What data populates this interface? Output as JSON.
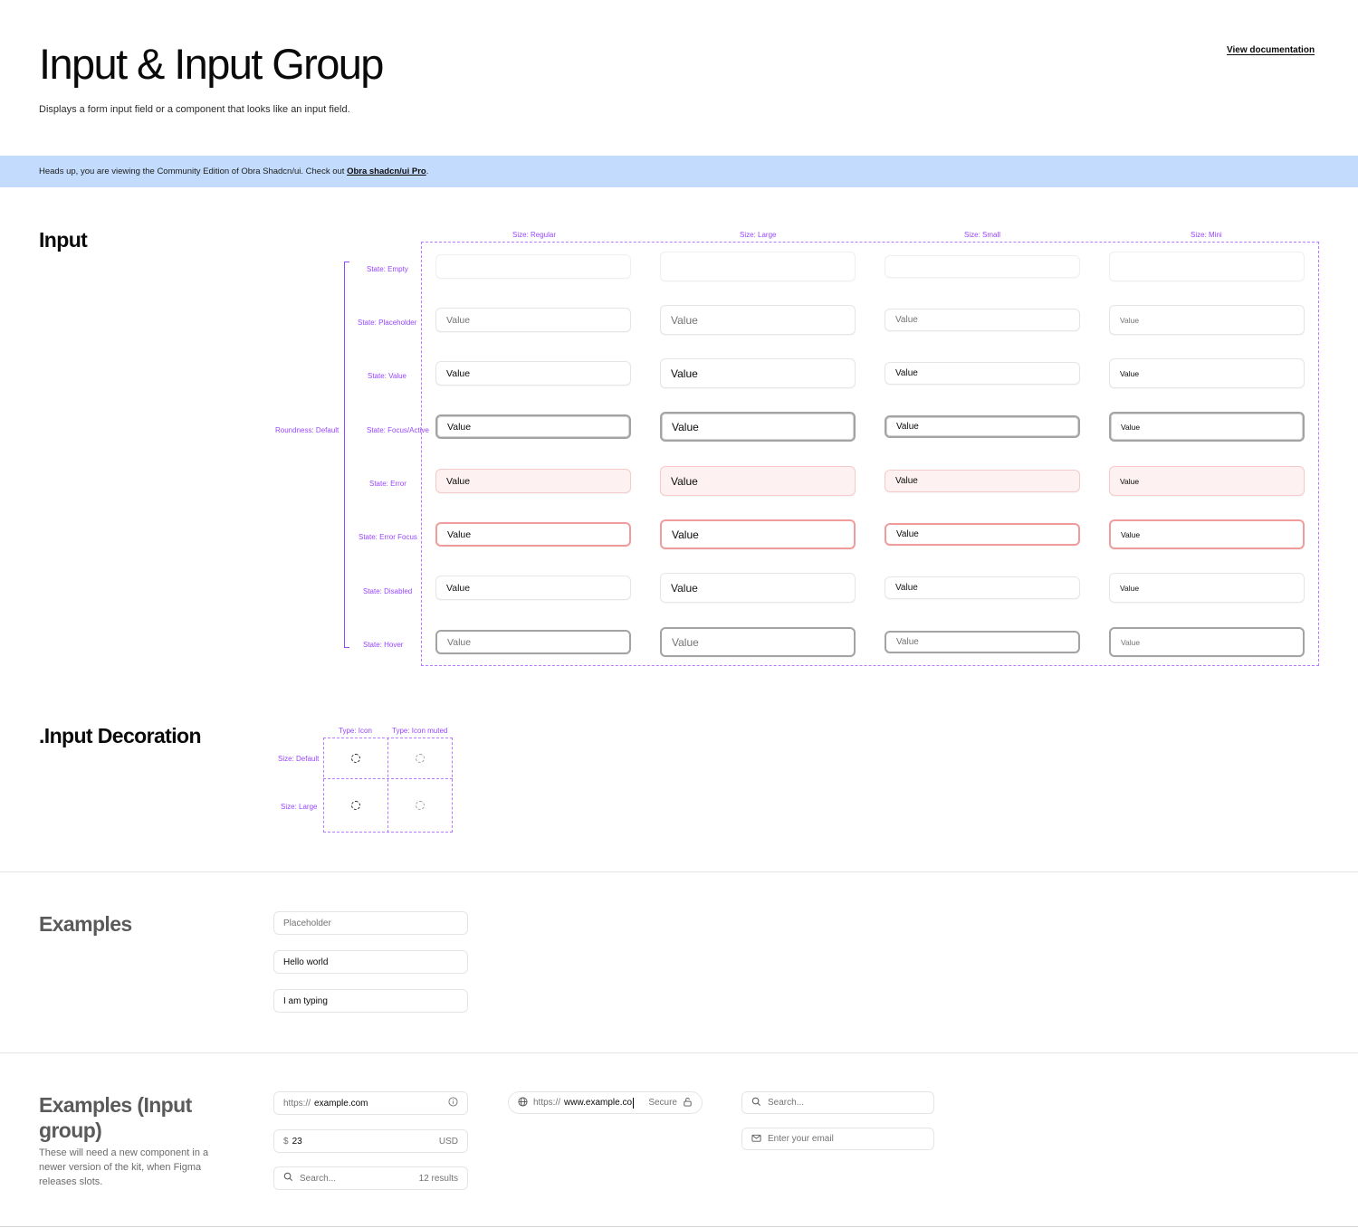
{
  "header": {
    "title": "Input & Input Group",
    "description": "Displays a form input field or a component that looks like an input field.",
    "doc_link": "View documentation"
  },
  "banner": {
    "text": "Heads up, you are viewing the Community Edition of Obra Shadcn/ui. Check out ",
    "link": "Obra shadcn/ui Pro",
    "end": "."
  },
  "input_section": {
    "title": "Input",
    "roundness_label": "Roundness: Default",
    "sizes": [
      "Size: Regular",
      "Size: Large",
      "Size: Small",
      "Size: Mini"
    ],
    "states": [
      "State: Empty",
      "State: Placeholder",
      "State: Value",
      "State: Focus/Active",
      "State: Error",
      "State: Error Focus",
      "State: Disabled",
      "State: Hover"
    ],
    "cell_value": "Value"
  },
  "decoration_section": {
    "title": ".Input Decoration",
    "types": [
      "Type: Icon",
      "Type: Icon muted"
    ],
    "sizes": [
      "Size: Default",
      "Size: Large"
    ]
  },
  "examples_section": {
    "title": "Examples",
    "inputs": [
      {
        "value": "Placeholder",
        "kind": "placeholder"
      },
      {
        "value": "Hello world",
        "kind": "value"
      },
      {
        "value": "I am typing",
        "kind": "value"
      }
    ]
  },
  "group_section": {
    "title_line1": "Examples (Input",
    "title_line2": "group)",
    "description": "These will need a new component in a newer version of the kit, when Figma releases slots.",
    "url_input": {
      "prefix": "https://",
      "value": "example.com",
      "icon": "info-icon"
    },
    "price_input": {
      "prefix": "$",
      "value": "23",
      "suffix": "USD"
    },
    "search_results": {
      "placeholder": "Search...",
      "suffix": "12 results",
      "icon": "search-icon"
    },
    "browser_url": {
      "icon": "globe-icon",
      "prefix": "https://",
      "value": "www.example.co",
      "suffix": "Secure",
      "suffix_icon": "lock-icon"
    },
    "search_plain": {
      "placeholder": "Search...",
      "icon": "search-icon"
    },
    "email": {
      "placeholder": "Enter your email",
      "icon": "mail-icon"
    }
  }
}
